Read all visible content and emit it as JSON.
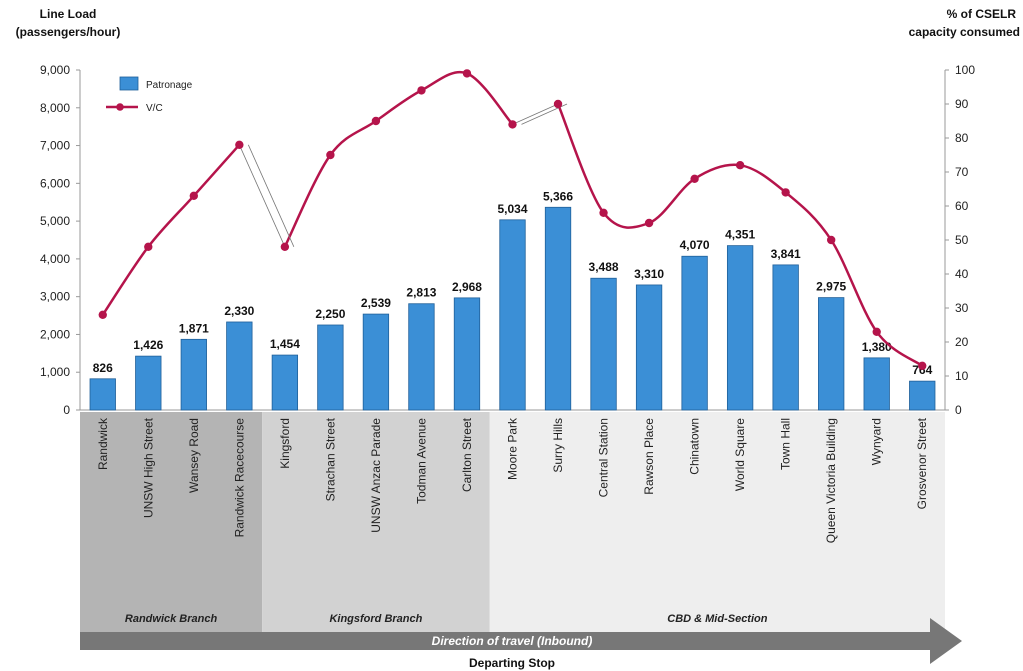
{
  "chart_data": {
    "type": "bar",
    "left_axis_title_line1": "Line Load",
    "left_axis_title_line2": "(passengers/hour)",
    "right_axis_title_line1": "% of CSELR",
    "right_axis_title_line2": "capacity consumed",
    "xlabel": "Departing Stop",
    "direction_label": "Direction of travel (Inbound)",
    "ylim": [
      0,
      9000
    ],
    "y2lim": [
      0,
      100
    ],
    "y_ticks": [
      "0",
      "1,000",
      "2,000",
      "3,000",
      "4,000",
      "5,000",
      "6,000",
      "7,000",
      "8,000",
      "9,000"
    ],
    "y2_ticks": [
      "0",
      "10",
      "20",
      "30",
      "40",
      "50",
      "60",
      "70",
      "80",
      "90",
      "100"
    ],
    "categories": [
      "Randwick",
      "UNSW High Street",
      "Wansey Road",
      "Randwick Racecourse",
      "Kingsford",
      "Strachan Street",
      "UNSW Anzac Parade",
      "Todman Avenue",
      "Carlton Street",
      "Moore Park",
      "Surry Hills",
      "Central Station",
      "Rawson Place",
      "Chinatown",
      "World Square",
      "Town Hall",
      "Queen Victoria Building",
      "Wynyard",
      "Grosvenor Street"
    ],
    "series": [
      {
        "name": "Patronage",
        "kind": "bar",
        "axis": "left",
        "color": "#3b8fd6",
        "values": [
          826,
          1426,
          1871,
          2330,
          1454,
          2250,
          2539,
          2813,
          2968,
          5034,
          5366,
          3488,
          3310,
          4070,
          4351,
          3841,
          2975,
          1380,
          764
        ],
        "labels": [
          "826",
          "1,426",
          "1,871",
          "2,330",
          "1,454",
          "2,250",
          "2,539",
          "2,813",
          "2,968",
          "5,034",
          "5,366",
          "3,488",
          "3,310",
          "4,070",
          "4,351",
          "3,841",
          "2,975",
          "1,380",
          "764"
        ]
      },
      {
        "name": "V/C",
        "kind": "line",
        "axis": "right",
        "color": "#b5144b",
        "values": [
          28,
          48,
          63,
          78,
          48,
          75,
          85,
          94,
          99,
          84,
          90,
          58,
          55,
          68,
          72,
          64,
          50,
          23,
          13
        ]
      }
    ],
    "branches": [
      {
        "label": "Randwick Branch",
        "from": 0,
        "to": 3,
        "color": "#b4b4b4"
      },
      {
        "label": "Kingsford Branch",
        "from": 4,
        "to": 8,
        "color": "#d2d2d2"
      },
      {
        "label": "CBD & Mid-Section",
        "from": 9,
        "to": 18,
        "color": "#eeeeee"
      }
    ],
    "breaks_after": [
      3,
      9
    ],
    "legend_position": "top-left"
  }
}
